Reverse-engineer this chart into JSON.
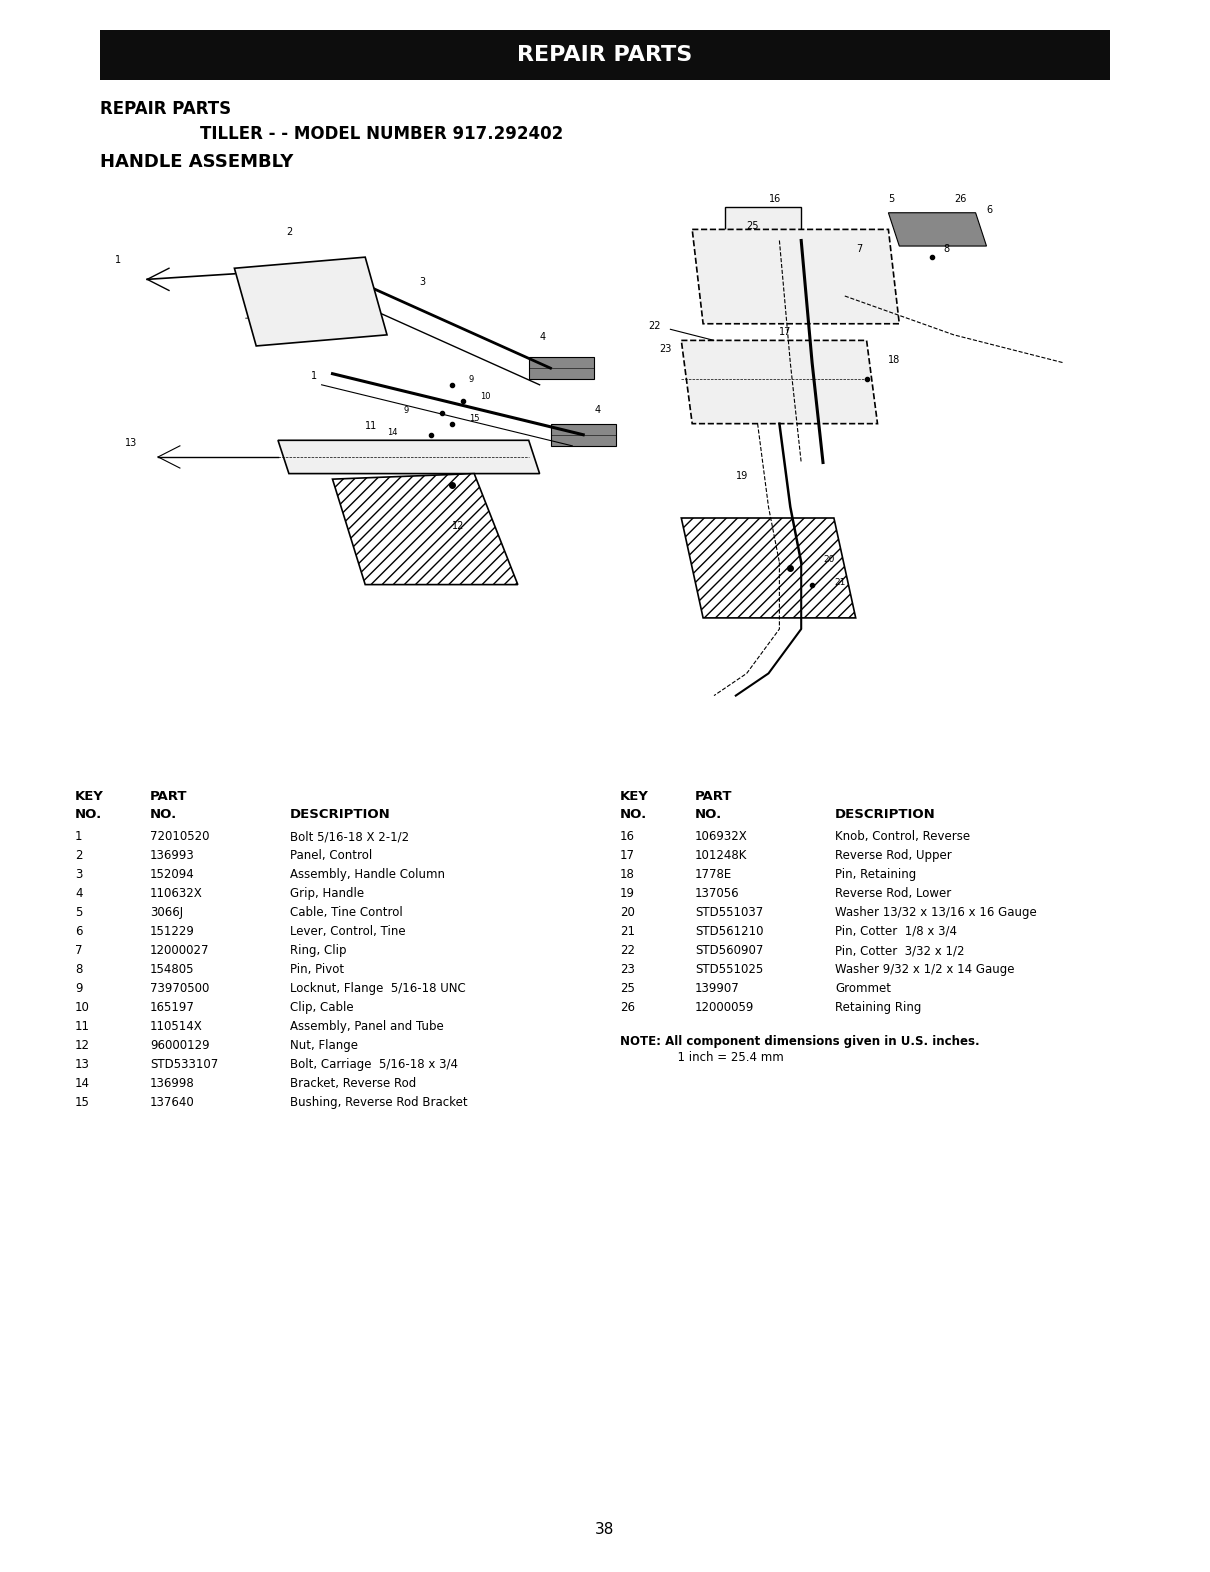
{
  "page_bg": "#ffffff",
  "header_bar_color": "#0d0d0d",
  "header_text": "REPAIR PARTS",
  "header_text_color": "#ffffff",
  "line1_text": "REPAIR PARTS",
  "line2_text": "TILLER - - MODEL NUMBER 917.292402",
  "line3_text": "HANDLE ASSEMBLY",
  "parts_table_left": [
    {
      "key": "1",
      "part": "72010520",
      "desc": "Bolt 5/16-18 X 2-1/2"
    },
    {
      "key": "2",
      "part": "136993",
      "desc": "Panel, Control"
    },
    {
      "key": "3",
      "part": "152094",
      "desc": "Assembly, Handle Column"
    },
    {
      "key": "4",
      "part": "110632X",
      "desc": "Grip, Handle"
    },
    {
      "key": "5",
      "part": "3066J",
      "desc": "Cable, Tine Control"
    },
    {
      "key": "6",
      "part": "151229",
      "desc": "Lever, Control, Tine"
    },
    {
      "key": "7",
      "part": "12000027",
      "desc": "Ring, Clip"
    },
    {
      "key": "8",
      "part": "154805",
      "desc": "Pin, Pivot"
    },
    {
      "key": "9",
      "part": "73970500",
      "desc": "Locknut, Flange  5/16-18 UNC"
    },
    {
      "key": "10",
      "part": "165197",
      "desc": "Clip, Cable"
    },
    {
      "key": "11",
      "part": "110514X",
      "desc": "Assembly, Panel and Tube"
    },
    {
      "key": "12",
      "part": "96000129",
      "desc": "Nut, Flange"
    },
    {
      "key": "13",
      "part": "STD533107",
      "desc": "Bolt, Carriage  5/16-18 x 3/4"
    },
    {
      "key": "14",
      "part": "136998",
      "desc": "Bracket, Reverse Rod"
    },
    {
      "key": "15",
      "part": "137640",
      "desc": "Bushing, Reverse Rod Bracket"
    }
  ],
  "parts_table_right": [
    {
      "key": "16",
      "part": "106932X",
      "desc": "Knob, Control, Reverse"
    },
    {
      "key": "17",
      "part": "101248K",
      "desc": "Reverse Rod, Upper"
    },
    {
      "key": "18",
      "part": "1778E",
      "desc": "Pin, Retaining"
    },
    {
      "key": "19",
      "part": "137056",
      "desc": "Reverse Rod, Lower"
    },
    {
      "key": "20",
      "part": "STD551037",
      "desc": "Washer 13/32 x 13/16 x 16 Gauge"
    },
    {
      "key": "21",
      "part": "STD561210",
      "desc": "Pin, Cotter  1/8 x 3/4"
    },
    {
      "key": "22",
      "part": "STD560907",
      "desc": "Pin, Cotter  3/32 x 1/2"
    },
    {
      "key": "23",
      "part": "STD551025",
      "desc": "Washer 9/32 x 1/2 x 14 Gauge"
    },
    {
      "key": "25",
      "part": "139907",
      "desc": "Grommet"
    },
    {
      "key": "26",
      "part": "12000059",
      "desc": "Retaining Ring"
    }
  ],
  "note_line1": "NOTE: All component dimensions given in U.S. inches.",
  "note_line2": "      1 inch = 25.4 mm",
  "page_number": "38"
}
